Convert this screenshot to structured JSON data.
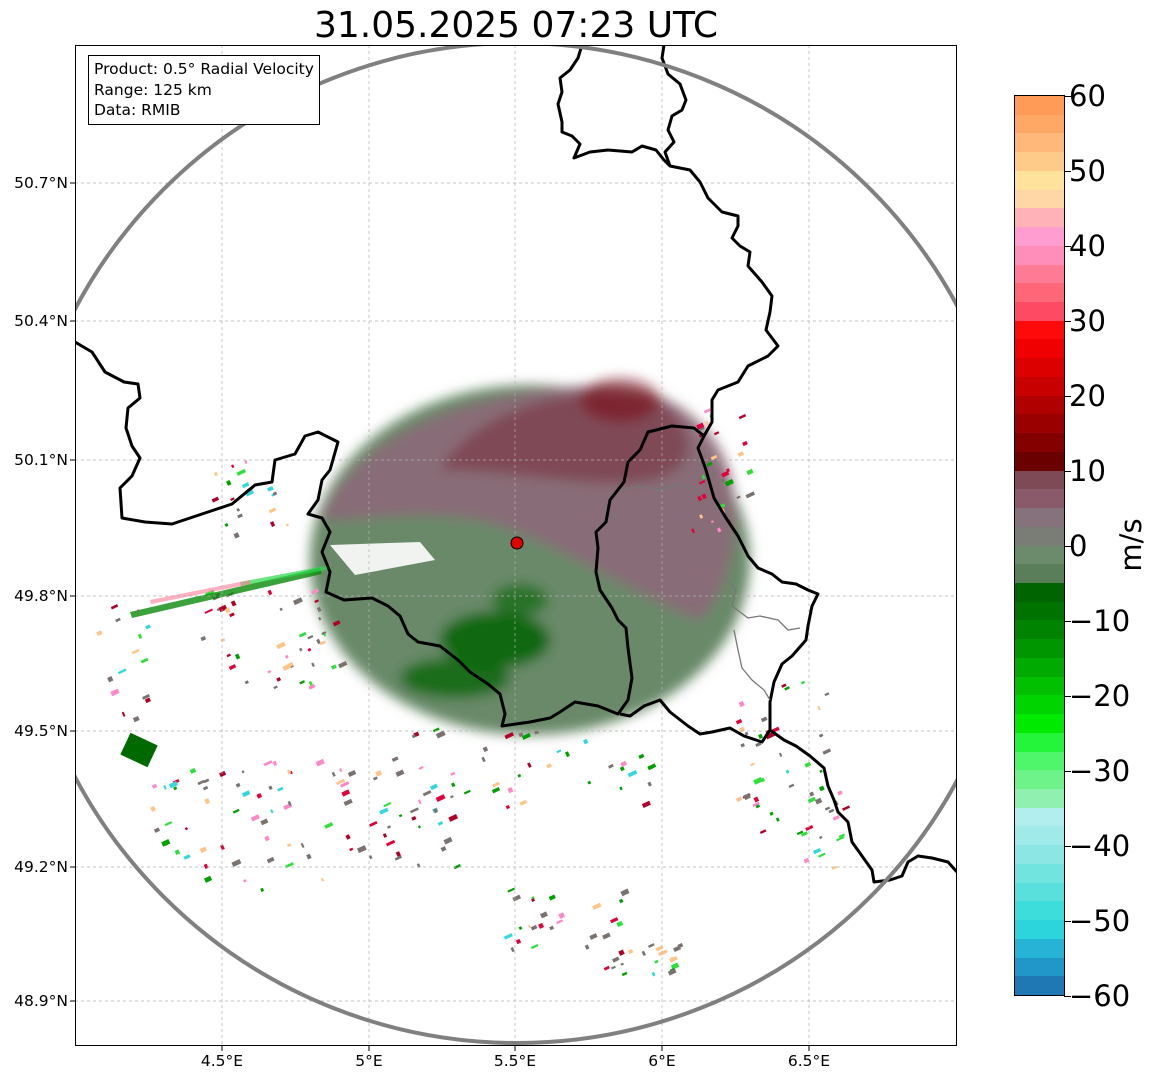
{
  "title": "31.05.2025 07:23 UTC",
  "info_box": {
    "product": "Product: 0.5° Radial Velocity",
    "range": "Range: 125 km",
    "data_source": "Data: RMIB"
  },
  "map": {
    "lon_range": [
      4.0,
      7.0
    ],
    "lat_range": [
      48.8,
      51.0
    ],
    "lat_ticks": [
      "50.7°N",
      "50.4°N",
      "50.1°N",
      "49.8°N",
      "49.5°N",
      "49.2°N",
      "48.9°N"
    ],
    "lon_ticks": [
      "4.5°E",
      "5°E",
      "5.5°E",
      "6°E",
      "6.5°E"
    ],
    "gridlines": true,
    "radar_site": {
      "lon": 5.505,
      "lat": 49.914,
      "color": "#e00000"
    },
    "range_ring_color": "#808080",
    "border_color": "#000000"
  },
  "colorbar": {
    "label": "m/s",
    "min": -60,
    "max": 60,
    "tick_labels": [
      "60",
      "50",
      "40",
      "30",
      "20",
      "10",
      "0",
      "−10",
      "−20",
      "−30",
      "−40",
      "−50",
      "−60"
    ],
    "colors": [
      "#1f77b4",
      "#2196c9",
      "#26b3d6",
      "#2cd4dc",
      "#3ddddc",
      "#5ae0dc",
      "#72e4e0",
      "#8ce6e4",
      "#a0eaea",
      "#b3eeee",
      "#8ff0b0",
      "#6ef38a",
      "#4ff56a",
      "#24f53a",
      "#00ea00",
      "#00d400",
      "#00c000",
      "#00aa00",
      "#009600",
      "#008400",
      "#007200",
      "#006400",
      "#5a7d5a",
      "#6c8a6c",
      "#7a7d75",
      "#85727c",
      "#8a5a6a",
      "#7e4a56",
      "#6a0000",
      "#840000",
      "#9a0000",
      "#b00000",
      "#c80000",
      "#dc0000",
      "#f00000",
      "#ff0a0a",
      "#ff4a64",
      "#ff6678",
      "#ff7a95",
      "#ff8fba",
      "#ff9dd0",
      "#ffb3b8",
      "#ffd6a6",
      "#ffe39d",
      "#ffcb88",
      "#ffb87a",
      "#ffa866",
      "#ff9a57"
    ]
  },
  "echo_colors": {
    "inbound_strong": "#006400",
    "inbound_mid": "#5c7f5c",
    "near_zero_pos": "#8a6c78",
    "outbound": "#7e3c4a",
    "outbound_strong": "#7a0a12",
    "clutter": "#7a7370"
  }
}
